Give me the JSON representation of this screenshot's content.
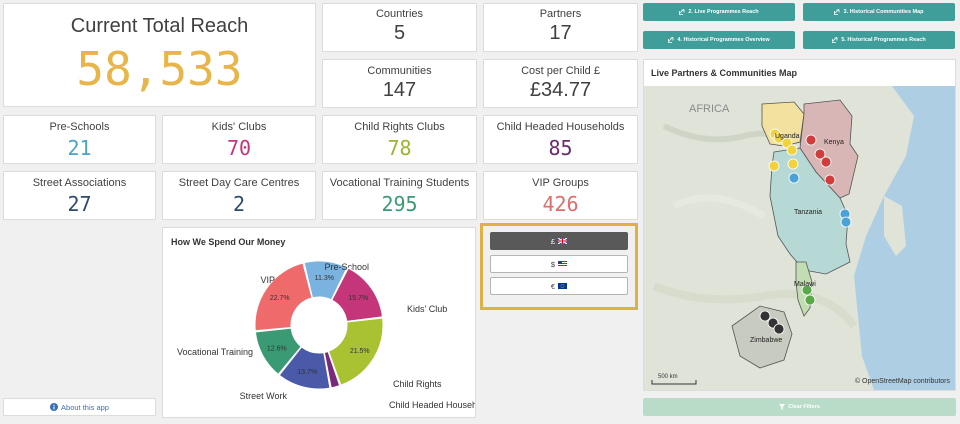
{
  "total_reach": {
    "label": "Current Total Reach",
    "value": "58,533"
  },
  "kpis": {
    "countries": {
      "label": "Countries",
      "value": "5"
    },
    "partners": {
      "label": "Partners",
      "value": "17"
    },
    "communities": {
      "label": "Communities",
      "value": "147"
    },
    "cost_per_child": {
      "label": "Cost per Child £",
      "value": "£34.77"
    },
    "pre_schools": {
      "label": "Pre-Schools",
      "value": "21"
    },
    "kids_clubs": {
      "label": "Kids' Clubs",
      "value": "70"
    },
    "child_rights_clubs": {
      "label": "Child Rights Clubs",
      "value": "78"
    },
    "child_headed_households": {
      "label": "Child Headed Households",
      "value": "85"
    },
    "street_associations": {
      "label": "Street Associations",
      "value": "27"
    },
    "street_day_care": {
      "label": "Street Day Care Centres",
      "value": "2"
    },
    "vocational_training": {
      "label": "Vocational Training Students",
      "value": "295"
    },
    "vip_groups": {
      "label": "VIP Groups",
      "value": "426"
    }
  },
  "colors": {
    "reach": "#e8b54a",
    "pre_schools": "#4aa3c8",
    "kids_clubs": "#c4357a",
    "child_rights": "#9cb432",
    "households": "#6d2b6b",
    "street_assoc": "#2e4a6b",
    "street_day": "#2e4a6b",
    "vocational": "#3a9a74",
    "vip": "#e06c6c",
    "teal": "#3f9e9a",
    "gold": "#e0b040"
  },
  "nav_buttons": [
    {
      "label": "2. Live Programmes Reach",
      "icon": "link-icon"
    },
    {
      "label": "3. Historical Communities Map",
      "icon": "link-icon"
    },
    {
      "label": "4. Historical Programmes Overview",
      "icon": "link-icon"
    },
    {
      "label": "5. Historical Programmes Reach",
      "icon": "link-icon"
    }
  ],
  "spend": {
    "title": "How We Spend Our Money",
    "chart_data": {
      "type": "pie",
      "title": "How We Spend Our Money",
      "categories": [
        "Pre-School",
        "Kids' Club",
        "Child Rights",
        "Child Headed Household",
        "Street Work",
        "Vocational Training",
        "VIP"
      ],
      "values": [
        11.3,
        15.7,
        21.5,
        2.5,
        13.7,
        12.6,
        22.7
      ],
      "labels": [
        "11.3%",
        "15.7%",
        "21.5%",
        "",
        "13.7%",
        "12.6%",
        "22.7%"
      ],
      "colors": [
        "#7ab3e0",
        "#c4357a",
        "#a8c232",
        "#7a2a7a",
        "#4a5aa8",
        "#3a9a74",
        "#ef6b6b"
      ]
    }
  },
  "currency": {
    "buttons": [
      {
        "label": "£",
        "icon": "uk-flag-icon"
      },
      {
        "label": "$",
        "icon": "us-flag-icon"
      },
      {
        "label": "€",
        "icon": "eu-flag-icon"
      }
    ]
  },
  "map": {
    "title": "Live Partners & Communities Map",
    "region_label": "AFRICA",
    "countries": [
      "Uganda",
      "Kenya",
      "Tanzania",
      "Malawi",
      "Zimbabwe"
    ],
    "scale": "500 km",
    "attribution": "© OpenStreetMap contributors"
  },
  "about_label": "About this app",
  "clear_filters_label": "Clear Filters"
}
